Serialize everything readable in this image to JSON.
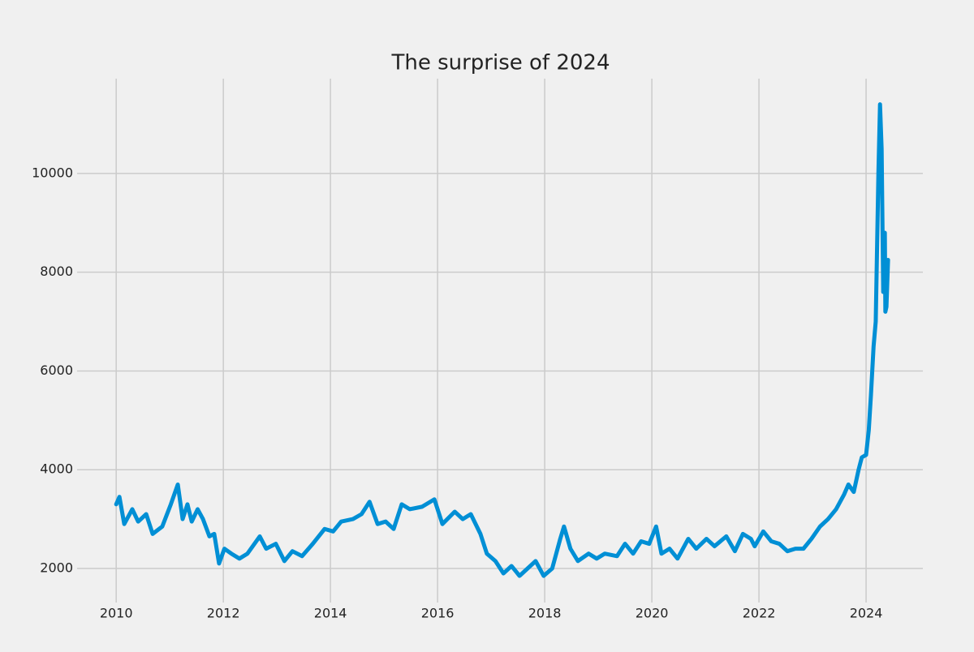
{
  "chart_data": {
    "type": "line",
    "title": "The surprise of 2024",
    "x": [
      2010.0,
      2010.06,
      2010.15,
      2010.3,
      2010.41,
      2010.56,
      2010.68,
      2010.86,
      2011.02,
      2011.15,
      2011.24,
      2011.33,
      2011.41,
      2011.52,
      2011.62,
      2011.74,
      2011.83,
      2011.92,
      2012.02,
      2012.15,
      2012.3,
      2012.45,
      2012.68,
      2012.8,
      2012.98,
      2013.14,
      2013.29,
      2013.47,
      2013.67,
      2013.89,
      2014.05,
      2014.2,
      2014.42,
      2014.58,
      2014.73,
      2014.88,
      2015.03,
      2015.18,
      2015.33,
      2015.48,
      2015.71,
      2015.94,
      2016.09,
      2016.32,
      2016.47,
      2016.62,
      2016.8,
      2016.92,
      2017.08,
      2017.23,
      2017.38,
      2017.53,
      2017.83,
      2017.98,
      2018.14,
      2018.29,
      2018.36,
      2018.48,
      2018.62,
      2018.82,
      2018.97,
      2019.12,
      2019.35,
      2019.5,
      2019.65,
      2019.8,
      2019.95,
      2020.08,
      2020.18,
      2020.33,
      2020.48,
      2020.68,
      2020.83,
      2021.02,
      2021.17,
      2021.39,
      2021.55,
      2021.7,
      2021.85,
      2021.92,
      2022.08,
      2022.23,
      2022.38,
      2022.53,
      2022.68,
      2022.83,
      2022.98,
      2023.14,
      2023.29,
      2023.44,
      2023.59,
      2023.67,
      2023.77,
      2023.86,
      2023.92,
      2024.0,
      2024.05,
      2024.09,
      2024.14,
      2024.18,
      2024.2,
      2024.23,
      2024.26,
      2024.29,
      2024.32,
      2024.35,
      2024.36,
      2024.38,
      2024.41
    ],
    "values": [
      3300,
      3450,
      2900,
      3200,
      2950,
      3100,
      2700,
      2850,
      3300,
      3700,
      3000,
      3300,
      2950,
      3200,
      3000,
      2650,
      2700,
      2100,
      2400,
      2300,
      2200,
      2300,
      2650,
      2400,
      2500,
      2150,
      2350,
      2250,
      2500,
      2800,
      2750,
      2950,
      3000,
      3100,
      3350,
      2900,
      2950,
      2800,
      3300,
      3200,
      3250,
      3400,
      2900,
      3150,
      3000,
      3100,
      2700,
      2300,
      2150,
      1900,
      2050,
      1850,
      2150,
      1850,
      2000,
      2600,
      2850,
      2400,
      2150,
      2300,
      2200,
      2300,
      2250,
      2500,
      2300,
      2550,
      2500,
      2850,
      2300,
      2400,
      2200,
      2600,
      2400,
      2600,
      2450,
      2650,
      2350,
      2700,
      2600,
      2450,
      2750,
      2550,
      2500,
      2350,
      2400,
      2400,
      2600,
      2850,
      3000,
      3200,
      3500,
      3700,
      3550,
      4000,
      4250,
      4300,
      4800,
      5500,
      6500,
      7000,
      8200,
      10000,
      11400,
      10500,
      7600,
      8800,
      7200,
      7300,
      8250
    ],
    "color": "#008fd5",
    "xlim": [
      2009.27,
      2025.06
    ],
    "xticks": [
      2010,
      2012,
      2014,
      2016,
      2018,
      2020,
      2022,
      2024
    ],
    "ylim": [
      1310,
      11920
    ],
    "yticks": [
      2000,
      4000,
      6000,
      8000,
      10000
    ],
    "grid": true
  }
}
